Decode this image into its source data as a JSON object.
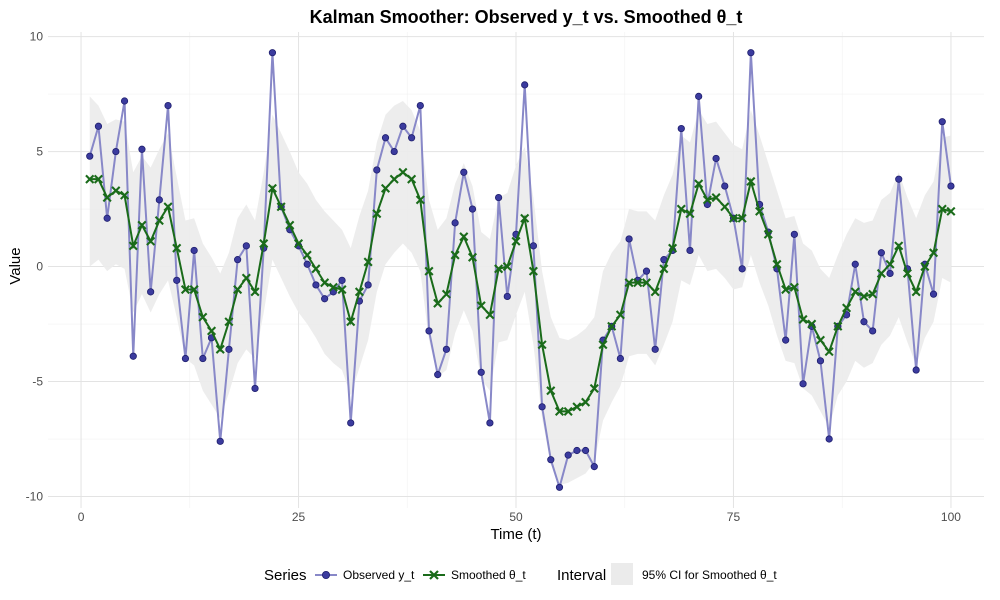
{
  "chart_data": {
    "type": "line",
    "title": "Kalman Smoother: Observed y_t vs. Smoothed θ_t",
    "xlabel": "Time (t)",
    "ylabel": "Value",
    "xlim": [
      -3.8,
      103.8
    ],
    "ylim": [
      -10.5,
      10.2
    ],
    "xticks": [
      0,
      25,
      50,
      75,
      100
    ],
    "yticks": [
      -10,
      -5,
      0,
      5,
      10
    ],
    "grid": true,
    "legend_position": "bottom",
    "colors": {
      "observed_line": "#8888c8",
      "observed_point": "#3b3b9e",
      "observed_point_edge": "#1f1f6e",
      "smoothed": "#1a6b1a",
      "ci_fill": "#ebebeb",
      "grid_major": "#e3e3e3",
      "grid_minor": "#f1f1f1"
    },
    "legend": {
      "series_title": "Series",
      "interval_title": "Interval",
      "observed_label": "Observed y_t",
      "smoothed_label": "Smoothed θ_t",
      "interval_label": "95% CI for Smoothed θ_t"
    },
    "t": [
      1,
      2,
      3,
      4,
      5,
      6,
      7,
      8,
      9,
      10,
      11,
      12,
      13,
      14,
      15,
      16,
      17,
      18,
      19,
      20,
      21,
      22,
      23,
      24,
      25,
      26,
      27,
      28,
      29,
      30,
      31,
      32,
      33,
      34,
      35,
      36,
      37,
      38,
      39,
      40,
      41,
      42,
      43,
      44,
      45,
      46,
      47,
      48,
      49,
      50,
      51,
      52,
      53,
      54,
      55,
      56,
      57,
      58,
      59,
      60,
      61,
      62,
      63,
      64,
      65,
      66,
      67,
      68,
      69,
      70,
      71,
      72,
      73,
      74,
      75,
      76,
      77,
      78,
      79,
      80,
      81,
      82,
      83,
      84,
      85,
      86,
      87,
      88,
      89,
      90,
      91,
      92,
      93,
      94,
      95,
      96,
      97,
      98,
      99,
      100
    ],
    "series": [
      {
        "name": "Observed y_t",
        "values": [
          4.8,
          6.1,
          2.1,
          5.0,
          7.2,
          -3.9,
          5.1,
          -1.1,
          2.9,
          7.0,
          -0.6,
          -4.0,
          0.7,
          -4.0,
          -3.1,
          -7.6,
          -3.6,
          0.3,
          0.9,
          -5.3,
          0.8,
          9.3,
          2.6,
          1.6,
          0.9,
          0.1,
          -0.8,
          -1.4,
          -1.1,
          -0.6,
          -6.8,
          -1.5,
          -0.8,
          4.2,
          5.6,
          5.0,
          6.1,
          5.6,
          7.0,
          -2.8,
          -4.7,
          -3.6,
          1.9,
          4.1,
          2.5,
          -4.6,
          -6.8,
          3.0,
          -1.3,
          1.4,
          7.9,
          0.9,
          -6.1,
          -8.4,
          -9.6,
          -8.2,
          -8.0,
          -8.0,
          -8.7,
          -3.2,
          -2.6,
          -4.0,
          1.2,
          -0.6,
          -0.2,
          -3.6,
          0.3,
          0.7,
          6.0,
          0.7,
          7.4,
          2.7,
          4.7,
          3.5,
          2.1,
          -0.1,
          9.3,
          2.7,
          1.5,
          -0.1,
          -3.2,
          1.4,
          -5.1,
          -2.6,
          -4.1,
          -7.5,
          -2.6,
          -2.1,
          0.1,
          -2.4,
          -2.8,
          0.6,
          -0.3,
          3.8,
          -0.1,
          -4.5,
          0.1,
          -1.2,
          6.3,
          3.5
        ]
      },
      {
        "name": "Smoothed θ_t",
        "values": [
          3.8,
          3.8,
          3.0,
          3.3,
          3.1,
          0.9,
          1.8,
          1.1,
          2.0,
          2.6,
          0.8,
          -1.0,
          -1.0,
          -2.2,
          -2.8,
          -3.6,
          -2.4,
          -1.0,
          -0.5,
          -1.1,
          1.0,
          3.4,
          2.6,
          1.8,
          1.0,
          0.5,
          -0.1,
          -0.7,
          -0.9,
          -1.0,
          -2.4,
          -1.1,
          0.2,
          2.3,
          3.4,
          3.8,
          4.1,
          3.8,
          2.9,
          -0.2,
          -1.6,
          -1.2,
          0.5,
          1.3,
          0.4,
          -1.7,
          -2.1,
          -0.1,
          0.0,
          1.1,
          2.1,
          -0.2,
          -3.4,
          -5.4,
          -6.3,
          -6.3,
          -6.1,
          -5.9,
          -5.3,
          -3.4,
          -2.6,
          -2.1,
          -0.7,
          -0.7,
          -0.7,
          -1.1,
          -0.1,
          0.8,
          2.5,
          2.3,
          3.6,
          2.9,
          3.0,
          2.6,
          2.1,
          2.1,
          3.7,
          2.4,
          1.4,
          0.1,
          -1.0,
          -0.9,
          -2.3,
          -2.5,
          -3.2,
          -3.7,
          -2.6,
          -1.8,
          -1.1,
          -1.3,
          -1.2,
          -0.3,
          0.1,
          0.9,
          -0.3,
          -1.1,
          0.0,
          0.6,
          2.5,
          2.4
        ]
      }
    ],
    "ci_lower": [
      0.0,
      0.3,
      -0.2,
      0.1,
      -0.1,
      -2.0,
      -1.2,
      -2.0,
      -1.2,
      -0.6,
      -2.2,
      -4.0,
      -4.3,
      -5.4,
      -6.0,
      -6.6,
      -5.5,
      -4.2,
      -3.6,
      -4.0,
      -2.0,
      0.3,
      -0.5,
      -1.3,
      -2.0,
      -2.5,
      -3.1,
      -3.8,
      -4.2,
      -4.5,
      -5.6,
      -4.4,
      -3.2,
      -1.1,
      0.1,
      0.6,
      1.0,
      0.6,
      -0.2,
      -3.2,
      -4.8,
      -4.5,
      -2.9,
      -1.9,
      -2.8,
      -4.9,
      -5.4,
      -3.3,
      -3.2,
      -2.1,
      -1.1,
      -3.4,
      -6.6,
      -8.6,
      -9.5,
      -9.4,
      -9.2,
      -9.0,
      -8.5,
      -6.7,
      -5.9,
      -5.2,
      -3.9,
      -3.8,
      -3.8,
      -4.3,
      -3.4,
      -2.4,
      -0.6,
      -0.8,
      0.5,
      -0.2,
      -0.1,
      -0.5,
      -1.0,
      -0.9,
      0.5,
      -0.7,
      -1.7,
      -3.0,
      -4.1,
      -4.2,
      -5.3,
      -5.6,
      -6.3,
      -7.0,
      -5.6,
      -5.0,
      -4.1,
      -4.4,
      -4.2,
      -3.4,
      -3.0,
      -2.2,
      -3.3,
      -4.3,
      -3.1,
      -2.4,
      -0.5,
      -0.7
    ],
    "ci_upper": [
      7.4,
      7.0,
      6.2,
      6.4,
      6.3,
      4.1,
      4.8,
      4.3,
      5.1,
      5.8,
      3.9,
      2.0,
      2.1,
      1.0,
      0.4,
      -0.3,
      0.6,
      2.1,
      2.7,
      2.0,
      4.1,
      6.6,
      5.8,
      5.0,
      4.1,
      3.6,
      2.9,
      2.4,
      2.0,
      1.6,
      0.8,
      2.2,
      3.3,
      5.4,
      6.6,
      7.0,
      7.2,
      6.8,
      5.9,
      2.9,
      1.6,
      2.1,
      3.6,
      4.5,
      3.5,
      1.5,
      1.2,
      3.0,
      3.2,
      4.4,
      5.2,
      3.0,
      -0.2,
      -2.2,
      -3.1,
      -3.2,
      -3.0,
      -2.7,
      -2.2,
      -0.2,
      0.6,
      1.1,
      2.5,
      2.4,
      2.4,
      2.0,
      3.1,
      4.0,
      5.7,
      5.4,
      6.8,
      6.2,
      6.3,
      5.8,
      5.3,
      5.1,
      6.8,
      5.7,
      4.5,
      3.3,
      2.1,
      2.2,
      1.0,
      0.7,
      -0.1,
      -0.5,
      0.5,
      1.4,
      2.1,
      1.9,
      2.0,
      2.9,
      3.2,
      4.1,
      3.0,
      2.1,
      3.1,
      3.7,
      5.6,
      5.7
    ]
  }
}
